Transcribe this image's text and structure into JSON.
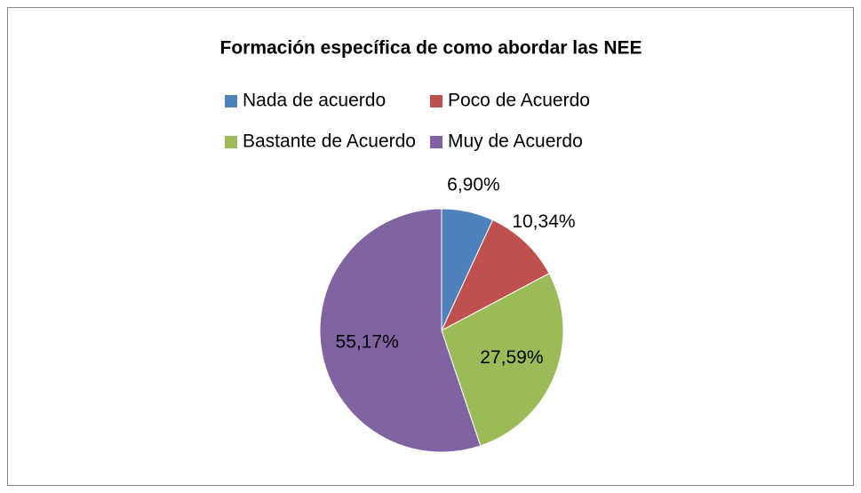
{
  "chart_data": {
    "type": "pie",
    "title": "Formación específica de como abordar las NEE",
    "categories": [
      "Nada de acuerdo",
      "Poco de Acuerdo",
      "Bastante de Acuerdo",
      "Muy de Acuerdo"
    ],
    "values": [
      6.9,
      10.34,
      27.59,
      55.17
    ],
    "value_labels": [
      "6,90%",
      "10,34%",
      "27,59%",
      "55,17%"
    ],
    "colors": [
      "#4f81bd",
      "#c0504d",
      "#9bbb59",
      "#8064a2"
    ],
    "legend": "top"
  }
}
